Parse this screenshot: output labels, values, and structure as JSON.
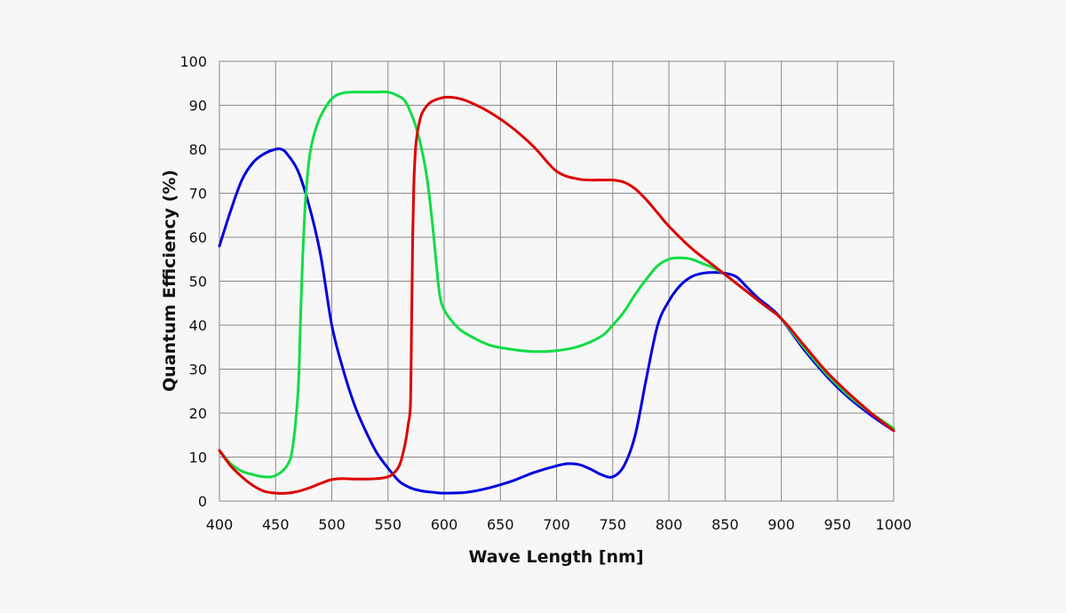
{
  "chart_data": {
    "type": "line",
    "title": "",
    "xlabel": "Wave Length [nm]",
    "ylabel": "Quantum Efficiency (%)",
    "xlim": [
      400,
      1000
    ],
    "ylim": [
      0,
      100
    ],
    "xticks": [
      400,
      450,
      500,
      550,
      600,
      650,
      700,
      750,
      800,
      850,
      900,
      950,
      1000
    ],
    "yticks": [
      0,
      10,
      20,
      30,
      40,
      50,
      60,
      70,
      80,
      90,
      100
    ],
    "grid": true,
    "legend": "none",
    "series": [
      {
        "color": "#0000dd",
        "x": [
          400,
          410,
          420,
          430,
          440,
          450,
          455,
          460,
          470,
          480,
          490,
          500,
          510,
          520,
          530,
          540,
          550,
          560,
          570,
          580,
          590,
          600,
          620,
          640,
          660,
          680,
          700,
          710,
          720,
          730,
          740,
          750,
          760,
          770,
          780,
          790,
          800,
          810,
          820,
          830,
          840,
          850,
          860,
          870,
          880,
          890,
          900,
          920,
          940,
          960,
          980,
          1000
        ],
        "y": [
          58,
          66,
          73,
          77,
          79,
          80,
          80,
          79,
          75,
          67,
          56,
          40,
          30,
          22,
          16,
          11,
          7.5,
          4.5,
          3,
          2.3,
          2,
          1.8,
          2,
          3,
          4.5,
          6.5,
          8,
          8.5,
          8.3,
          7.3,
          6,
          5.5,
          8,
          15,
          28,
          40,
          45.5,
          49,
          51,
          51.8,
          52,
          51.8,
          51,
          48.5,
          46,
          44,
          41.5,
          34.5,
          28.5,
          23.5,
          19.5,
          16
        ]
      },
      {
        "color": "#11dd44",
        "x": [
          400,
          410,
          420,
          430,
          440,
          450,
          460,
          465,
          470,
          472,
          474,
          476,
          478,
          480,
          482,
          485,
          490,
          500,
          510,
          520,
          530,
          540,
          550,
          560,
          565,
          570,
          575,
          580,
          585,
          590,
          593,
          596,
          600,
          610,
          620,
          640,
          660,
          680,
          700,
          720,
          740,
          750,
          760,
          770,
          780,
          790,
          800,
          810,
          820,
          830,
          840,
          850,
          860,
          870,
          880,
          890,
          900,
          920,
          940,
          960,
          980,
          1000
        ],
        "y": [
          11.5,
          8.5,
          6.8,
          6,
          5.5,
          5.8,
          8,
          12,
          25,
          40,
          55,
          66,
          73,
          78,
          81,
          84,
          87.5,
          91.5,
          92.8,
          93,
          93,
          93,
          93,
          92,
          91,
          88.5,
          85,
          80,
          73,
          62,
          54,
          47,
          43.5,
          40,
          38,
          35.5,
          34.5,
          34,
          34.2,
          35.2,
          37.5,
          40,
          43,
          47,
          50.5,
          53.5,
          55,
          55.3,
          55,
          54,
          53,
          51.5,
          49.5,
          47.5,
          45.5,
          43.5,
          41.5,
          35,
          29,
          24,
          20,
          16.5
        ]
      },
      {
        "color": "#dd0000",
        "x": [
          400,
          410,
          420,
          430,
          440,
          450,
          460,
          470,
          480,
          490,
          500,
          510,
          520,
          530,
          540,
          550,
          555,
          560,
          563,
          566,
          568,
          570,
          571,
          572,
          573,
          574,
          575,
          577,
          580,
          585,
          590,
          600,
          610,
          620,
          640,
          660,
          680,
          700,
          720,
          740,
          750,
          760,
          770,
          780,
          790,
          800,
          820,
          840,
          860,
          880,
          900,
          920,
          940,
          960,
          980,
          1000
        ],
        "y": [
          11.5,
          8,
          5.5,
          3.5,
          2.2,
          1.8,
          1.8,
          2.2,
          3,
          4,
          4.9,
          5.1,
          5,
          5,
          5.1,
          5.5,
          6.3,
          8,
          10.5,
          14,
          17.5,
          22,
          40,
          60,
          72,
          78,
          81.5,
          85,
          88,
          90,
          91,
          91.8,
          91.7,
          91,
          88.5,
          85,
          80.5,
          75,
          73.2,
          73,
          73,
          72.5,
          71,
          68.5,
          65.5,
          62.5,
          57.5,
          53.5,
          49.5,
          45.5,
          41.5,
          35.5,
          29.5,
          24.5,
          20,
          16
        ]
      }
    ]
  }
}
